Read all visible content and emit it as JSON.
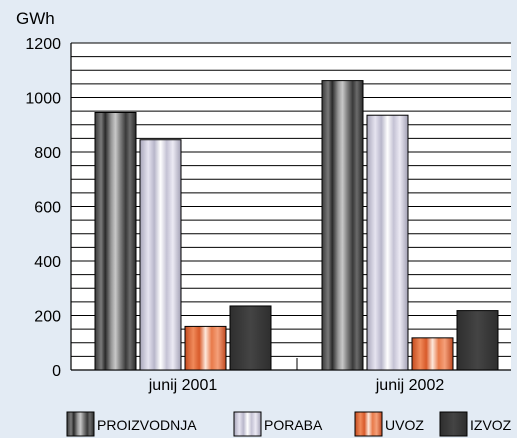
{
  "chart_data": {
    "type": "bar",
    "unit": "GWh",
    "categories": [
      "junij 2001",
      "junij 2002"
    ],
    "series": [
      {
        "name": "PROIZVODNJA",
        "values": [
          945,
          1062
        ]
      },
      {
        "name": "PORABA",
        "values": [
          845,
          935
        ]
      },
      {
        "name": "UVOZ",
        "values": [
          160,
          118
        ]
      },
      {
        "name": "IZVOZ",
        "values": [
          235,
          218
        ]
      }
    ],
    "ylim": [
      0,
      1200
    ],
    "yticks": [
      0,
      200,
      400,
      600,
      800,
      1000,
      1200
    ],
    "minor_gridline_step": 50,
    "grid": true,
    "legend_position": "bottom"
  },
  "colors": {
    "background": "#e3ebf4",
    "plot_background": "#ffffff",
    "PROIZVODNJA": "#6c6c6c",
    "PORABA": "#d4d2e2",
    "UVOZ": "#e07040",
    "IZVOZ": "#3a3a3a"
  }
}
